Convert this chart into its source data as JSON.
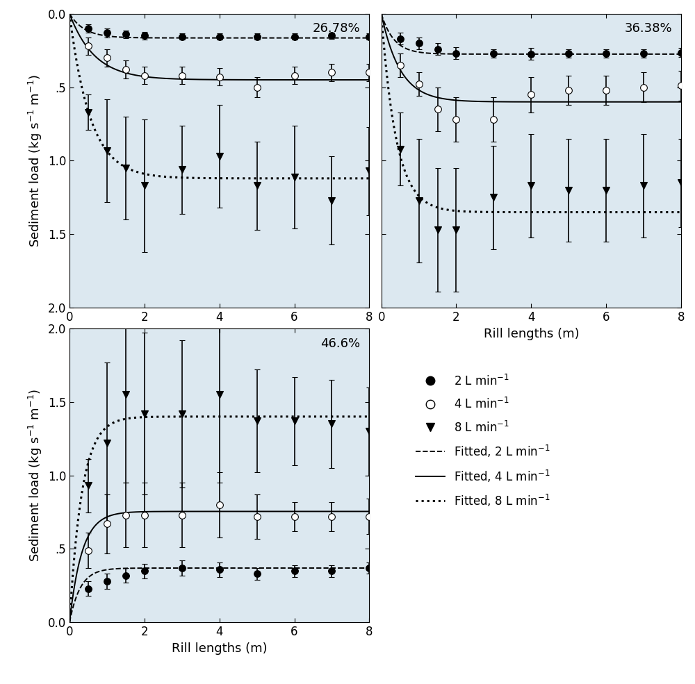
{
  "panels": [
    {
      "label": "26.78%",
      "x_data": [
        0.5,
        1.0,
        1.5,
        2.0,
        3.0,
        4.0,
        5.0,
        6.0,
        7.0,
        8.0
      ],
      "y_2L": [
        0.1,
        0.13,
        0.14,
        0.15,
        0.155,
        0.155,
        0.155,
        0.155,
        0.15,
        0.155
      ],
      "yerr_2L": [
        0.03,
        0.03,
        0.025,
        0.025,
        0.02,
        0.02,
        0.02,
        0.02,
        0.02,
        0.02
      ],
      "y_4L": [
        0.22,
        0.3,
        0.38,
        0.42,
        0.42,
        0.43,
        0.5,
        0.42,
        0.4,
        0.4
      ],
      "yerr_4L": [
        0.06,
        0.06,
        0.06,
        0.06,
        0.06,
        0.06,
        0.07,
        0.06,
        0.06,
        0.06
      ],
      "y_8L": [
        0.67,
        0.93,
        1.05,
        1.17,
        1.06,
        0.97,
        1.17,
        1.11,
        1.27,
        1.07
      ],
      "yerr_8L": [
        0.12,
        0.35,
        0.35,
        0.45,
        0.3,
        0.35,
        0.3,
        0.35,
        0.3,
        0.3
      ],
      "fit2_a": 0.165,
      "fit2_b": 2.5,
      "fit4_a": 0.45,
      "fit4_b": 1.5,
      "fit8_a": 1.12,
      "fit8_b": 1.8,
      "ylim": [
        2.0,
        0.0
      ],
      "yticks": [
        2.0,
        1.5,
        1.0,
        0.5,
        0.0
      ],
      "yticklabels": [
        "2.0",
        "1.5",
        "1.0",
        ".5",
        "0.0"
      ],
      "inverted": true,
      "show_ylabel": true,
      "show_xlabel": false
    },
    {
      "label": "36.38%",
      "x_data": [
        0.5,
        1.0,
        1.5,
        2.0,
        3.0,
        4.0,
        5.0,
        6.0,
        7.0,
        8.0
      ],
      "y_2L": [
        0.17,
        0.2,
        0.24,
        0.27,
        0.27,
        0.275,
        0.27,
        0.27,
        0.27,
        0.265
      ],
      "yerr_2L": [
        0.04,
        0.04,
        0.04,
        0.04,
        0.03,
        0.04,
        0.03,
        0.03,
        0.03,
        0.03
      ],
      "y_4L": [
        0.35,
        0.48,
        0.65,
        0.72,
        0.72,
        0.55,
        0.52,
        0.52,
        0.5,
        0.49
      ],
      "yerr_4L": [
        0.08,
        0.08,
        0.15,
        0.15,
        0.15,
        0.12,
        0.1,
        0.1,
        0.1,
        0.1
      ],
      "y_8L": [
        0.92,
        1.27,
        1.47,
        1.47,
        1.25,
        1.17,
        1.2,
        1.2,
        1.17,
        1.15
      ],
      "yerr_8L": [
        0.25,
        0.42,
        0.42,
        0.42,
        0.35,
        0.35,
        0.35,
        0.35,
        0.35,
        0.3
      ],
      "fit2_a": 0.275,
      "fit2_b": 3.0,
      "fit4_a": 0.6,
      "fit4_b": 2.0,
      "fit8_a": 1.35,
      "fit8_b": 2.5,
      "ylim": [
        2.0,
        0.0
      ],
      "yticks": [
        2.0,
        1.5,
        1.0,
        0.5,
        0.0
      ],
      "yticklabels": [
        "2.0",
        "1.5",
        "1.0",
        ".5",
        "0.0"
      ],
      "inverted": true,
      "show_ylabel": false,
      "show_xlabel": true
    },
    {
      "label": "46.6%",
      "x_data": [
        0.5,
        1.0,
        1.5,
        2.0,
        3.0,
        4.0,
        5.0,
        6.0,
        7.0,
        8.0
      ],
      "y_2L": [
        0.23,
        0.28,
        0.32,
        0.35,
        0.37,
        0.36,
        0.33,
        0.35,
        0.35,
        0.37
      ],
      "yerr_2L": [
        0.05,
        0.05,
        0.05,
        0.05,
        0.05,
        0.05,
        0.04,
        0.04,
        0.04,
        0.04
      ],
      "y_4L": [
        0.49,
        0.67,
        0.73,
        0.73,
        0.73,
        0.8,
        0.72,
        0.72,
        0.72,
        0.72
      ],
      "yerr_4L": [
        0.12,
        0.2,
        0.22,
        0.22,
        0.22,
        0.22,
        0.15,
        0.1,
        0.1,
        0.12
      ],
      "y_8L": [
        0.93,
        1.22,
        1.55,
        1.42,
        1.42,
        1.55,
        1.37,
        1.37,
        1.35,
        1.3
      ],
      "yerr_8L": [
        0.18,
        0.55,
        0.6,
        0.55,
        0.5,
        0.6,
        0.35,
        0.3,
        0.3,
        0.3
      ],
      "fit2_a": 0.37,
      "fit2_b": 3.5,
      "fit4_a": 0.755,
      "fit4_b": 3.0,
      "fit8_a": 1.4,
      "fit8_b": 3.0,
      "ylim": [
        0.0,
        2.0
      ],
      "yticks": [
        0.0,
        0.5,
        1.0,
        1.5,
        2.0
      ],
      "yticklabels": [
        "0.0",
        ".5",
        "1.0",
        "1.5",
        "2.0"
      ],
      "inverted": false,
      "show_ylabel": true,
      "show_xlabel": true
    }
  ],
  "xlabel": "Rill lengths (m)",
  "ylabel": "Sediment load (kg s-1 m-1)",
  "axis_bg_color": "#dce8f0",
  "fig_background": "#ffffff",
  "marker_size": 7,
  "cap_size": 3,
  "elinewidth": 1.2
}
